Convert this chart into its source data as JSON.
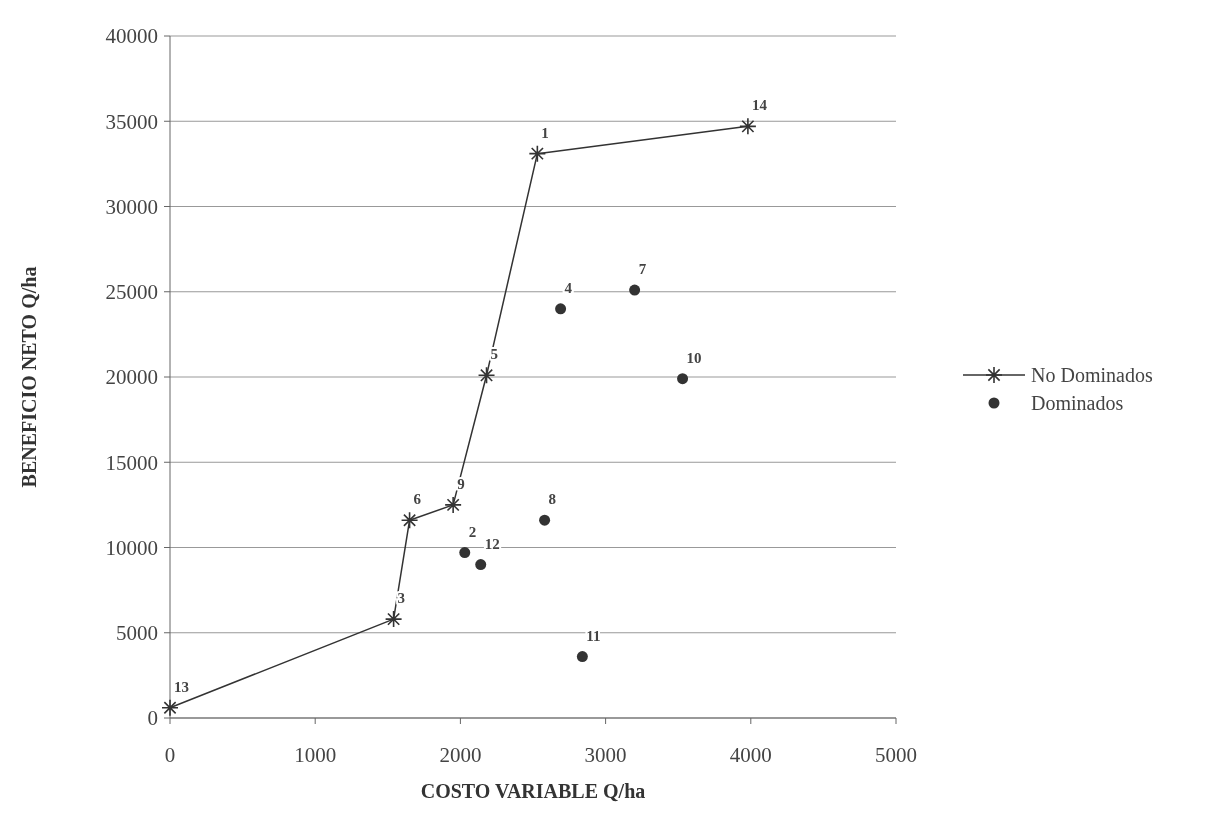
{
  "chart_data": {
    "type": "scatter",
    "xlabel": "COSTO VARIABLE Q/ha",
    "ylabel": "BENEFICIO NETO Q/ha",
    "xlim": [
      0,
      5000
    ],
    "xticks": [
      0,
      1000,
      2000,
      3000,
      4000,
      5000
    ],
    "ylim": [
      0,
      40000
    ],
    "yticks": [
      0,
      5000,
      10000,
      15000,
      20000,
      25000,
      30000,
      35000,
      40000
    ],
    "grid": "y",
    "legend": "right",
    "series": [
      {
        "name": "No Dominados",
        "type": "line",
        "marker": "cross",
        "color": "#333333",
        "x": [
          0,
          1540,
          1650,
          1950,
          2180,
          2530,
          3980
        ],
        "values": [
          600,
          5800,
          11600,
          12500,
          20100,
          33100,
          34700
        ]
      },
      {
        "name": "Dominados",
        "marker": "circle",
        "color": "#333333",
        "x": [
          2690,
          3200,
          3530,
          2580,
          2030,
          2140,
          2840
        ],
        "values": [
          24000,
          25100,
          19900,
          11600,
          9700,
          9000,
          3600
        ]
      }
    ],
    "annotations": [
      {
        "text": "13",
        "x": 0,
        "y": 600
      },
      {
        "text": "3",
        "x": 1540,
        "y": 5800
      },
      {
        "text": "6",
        "x": 1650,
        "y": 11600
      },
      {
        "text": "9",
        "x": 1950,
        "y": 12500
      },
      {
        "text": "5",
        "x": 2180,
        "y": 20100
      },
      {
        "text": "1",
        "x": 2530,
        "y": 33100
      },
      {
        "text": "14",
        "x": 3980,
        "y": 34700
      },
      {
        "text": "4",
        "x": 2690,
        "y": 24000
      },
      {
        "text": "7",
        "x": 3200,
        "y": 25100
      },
      {
        "text": "10",
        "x": 3530,
        "y": 19900
      },
      {
        "text": "8",
        "x": 2580,
        "y": 11600
      },
      {
        "text": "2",
        "x": 2030,
        "y": 9700
      },
      {
        "text": "12",
        "x": 2140,
        "y": 9000
      },
      {
        "text": "11",
        "x": 2840,
        "y": 3600
      }
    ]
  }
}
